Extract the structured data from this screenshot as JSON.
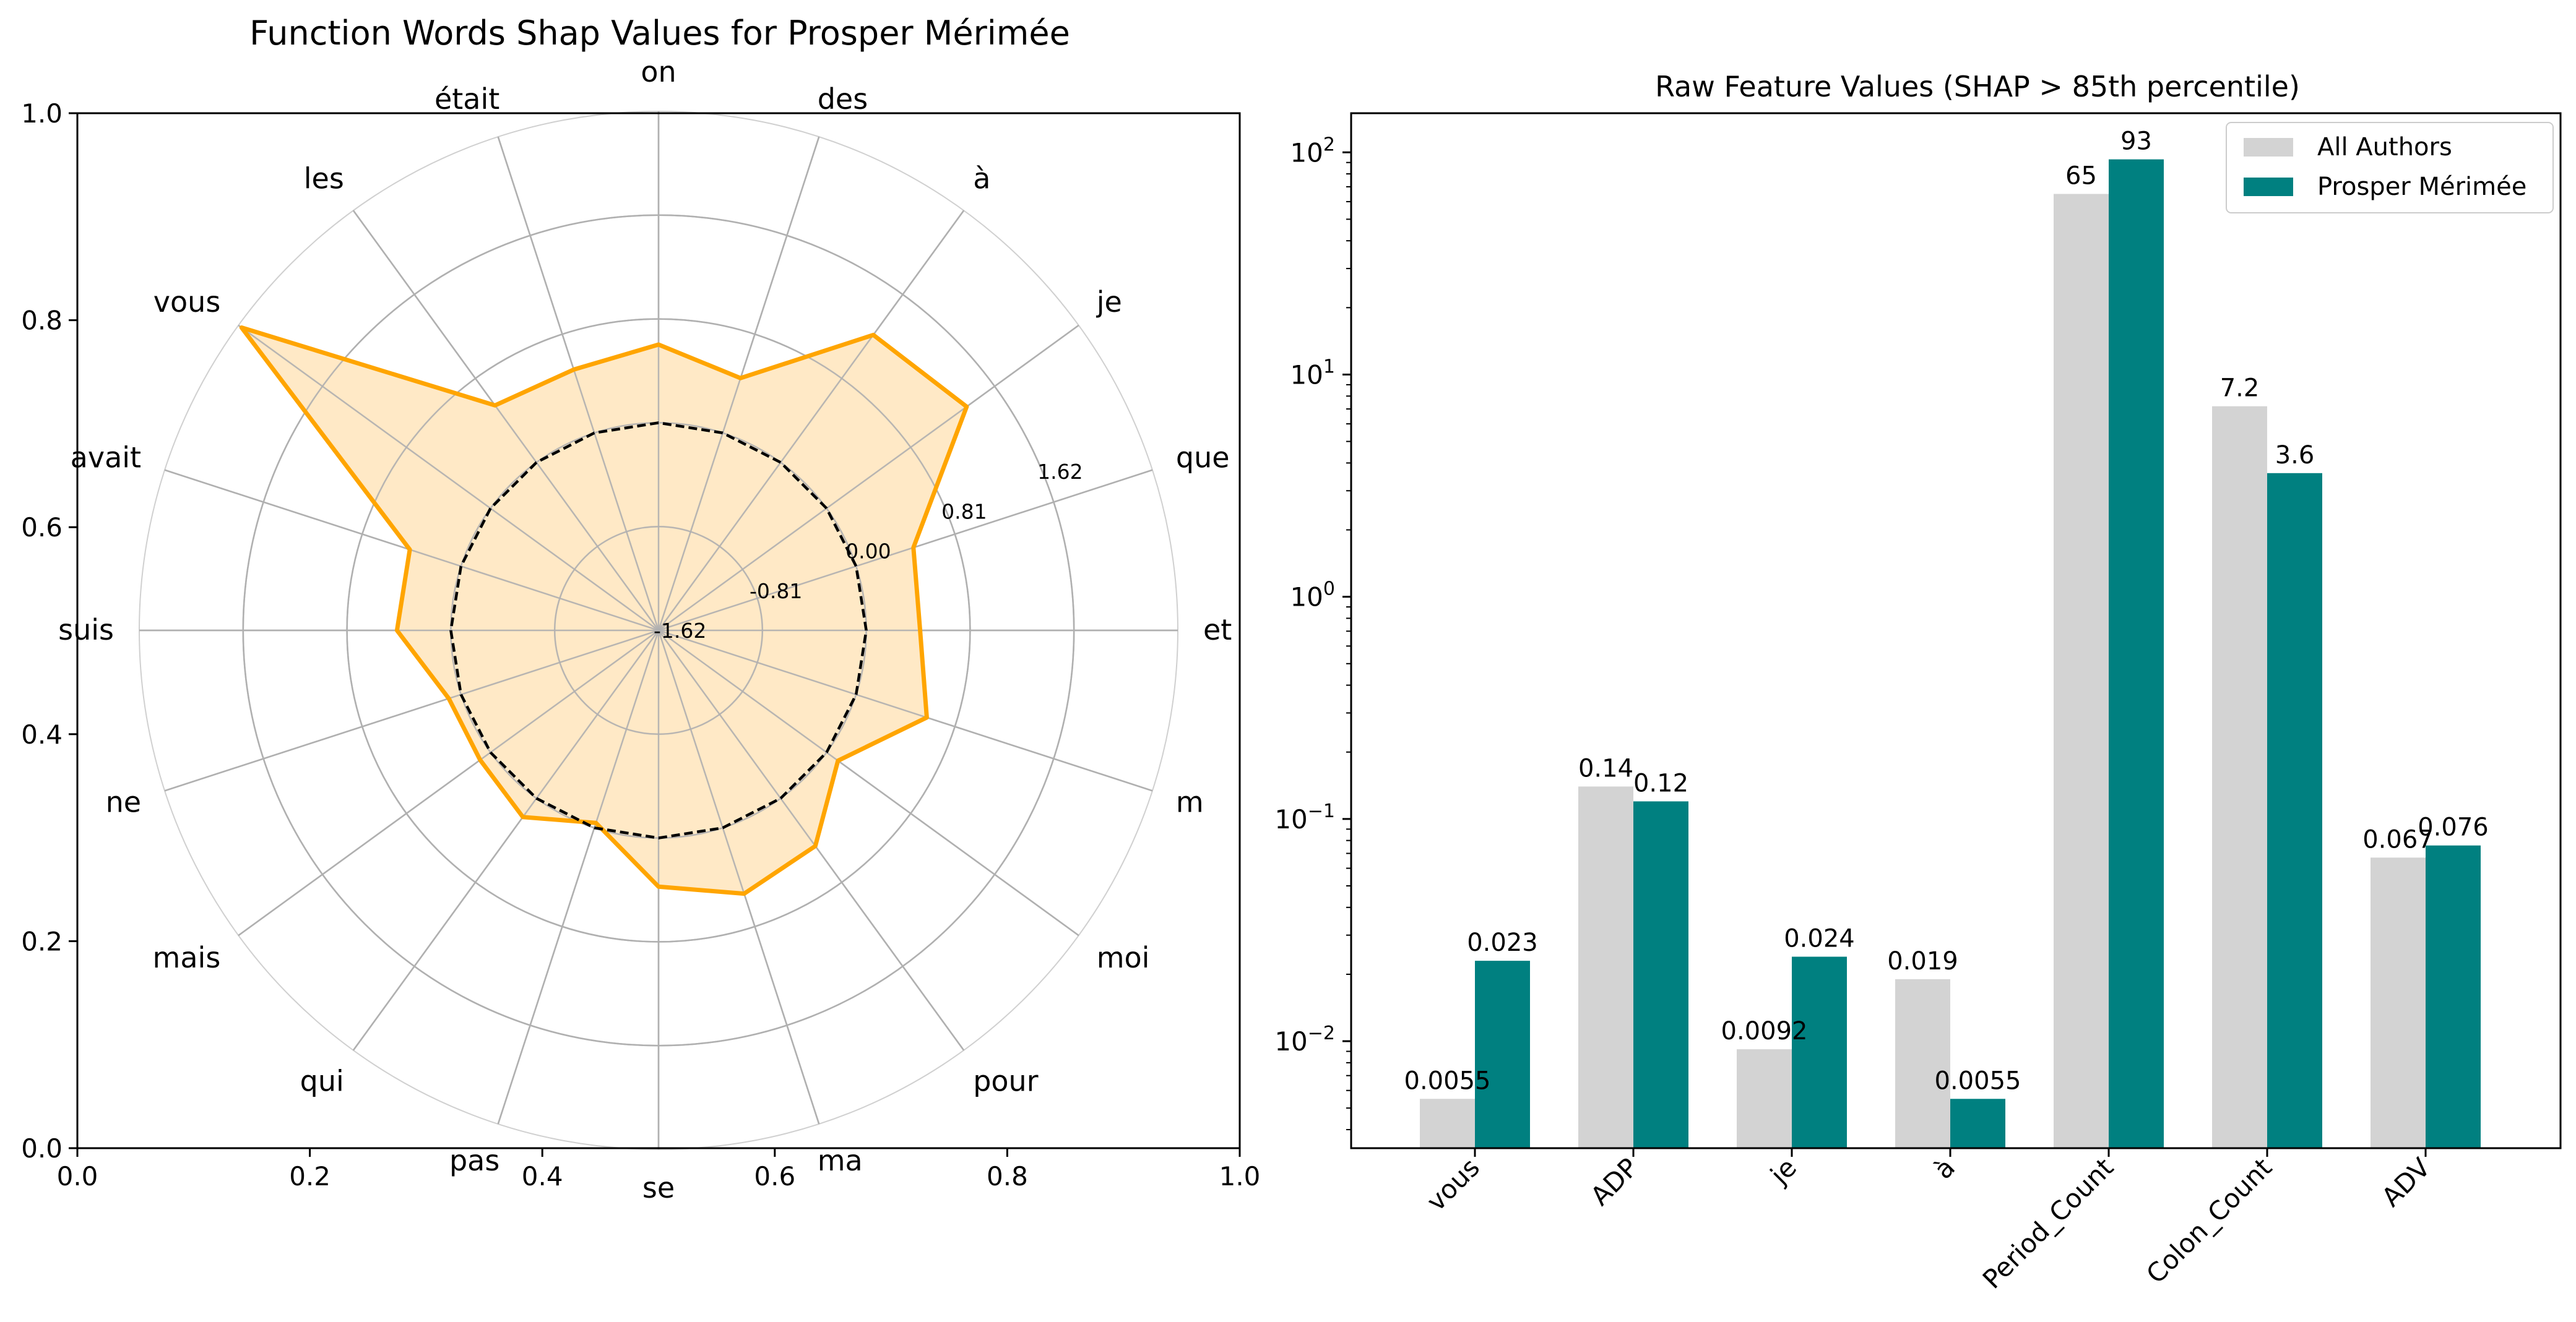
{
  "chart_data": [
    {
      "type": "radar",
      "title": "Function Words Shap Values for Prosper Mérimée",
      "axis_frame": {
        "xlim": [
          0.0,
          1.0
        ],
        "ylim": [
          0.0,
          1.0
        ],
        "x_ticks": [
          "0.0",
          "0.2",
          "0.4",
          "0.6",
          "0.8",
          "1.0"
        ],
        "y_ticks": [
          "0.0",
          "0.2",
          "0.4",
          "0.6",
          "0.8",
          "1.0"
        ]
      },
      "radial_range": [
        -1.62,
        2.43
      ],
      "radial_ticks": [
        "-1.62",
        "-0.81",
        "0.00",
        "0.81",
        "1.62"
      ],
      "categories": [
        "et",
        "que",
        "je",
        "à",
        "des",
        "on",
        "était",
        "les",
        "vous",
        "avait",
        "suis",
        "ne",
        "mais",
        "qui",
        "pas",
        "se",
        "ma",
        "pour",
        "moi",
        "m"
      ],
      "series": [
        {
          "name": "",
          "color": "#ffa500",
          "fill": "#ffe7c0",
          "values": [
            0.42,
            0.47,
            1.35,
            1.23,
            0.45,
            0.61,
            0.52,
            0.55,
            2.4,
            0.42,
            0.42,
            0.1,
            0.1,
            0.18,
            -0.04,
            0.38,
            0.54,
            0.46,
            0.11,
            0.58
          ]
        },
        {
          "name": "",
          "color": "#000000",
          "style": "dashed",
          "values": [
            0.0,
            0.0,
            0.0,
            0.0,
            0.0,
            0.0,
            0.0,
            0.0,
            0.0,
            0.0,
            0.0,
            0.0,
            0.0,
            0.0,
            0.0,
            0.0,
            0.0,
            0.0,
            0.0,
            0.0
          ]
        }
      ]
    },
    {
      "type": "bar",
      "title": "Raw Feature Values (SHAP > 85th percentile)",
      "yscale": "log",
      "ylim": [
        0.0033,
        150
      ],
      "y_ticks": [
        {
          "base": "10",
          "exp": "−2",
          "value": 0.01
        },
        {
          "base": "10",
          "exp": "−1",
          "value": 0.1
        },
        {
          "base": "10",
          "exp": "0",
          "value": 1
        },
        {
          "base": "10",
          "exp": "1",
          "value": 10
        },
        {
          "base": "10",
          "exp": "2",
          "value": 100
        }
      ],
      "categories": [
        "vous",
        "ADP",
        "je",
        "à",
        "Period_Count",
        "Colon_Count",
        "ADV"
      ],
      "series": [
        {
          "name": "All Authors",
          "color": "#d3d3d3",
          "values": [
            0.0055,
            0.14,
            0.0092,
            0.019,
            65,
            7.2,
            0.067
          ],
          "labels": [
            "0.0055",
            "0.14",
            "0.0092",
            "0.019",
            "65",
            "7.2",
            "0.067"
          ]
        },
        {
          "name": "Prosper Mérimée",
          "color": "#008080",
          "values": [
            0.023,
            0.12,
            0.024,
            0.0055,
            93,
            3.6,
            0.076
          ],
          "labels": [
            "0.023",
            "0.12",
            "0.024",
            "0.0055",
            "93",
            "3.6",
            "0.076"
          ]
        }
      ],
      "legend": "top-right"
    }
  ]
}
